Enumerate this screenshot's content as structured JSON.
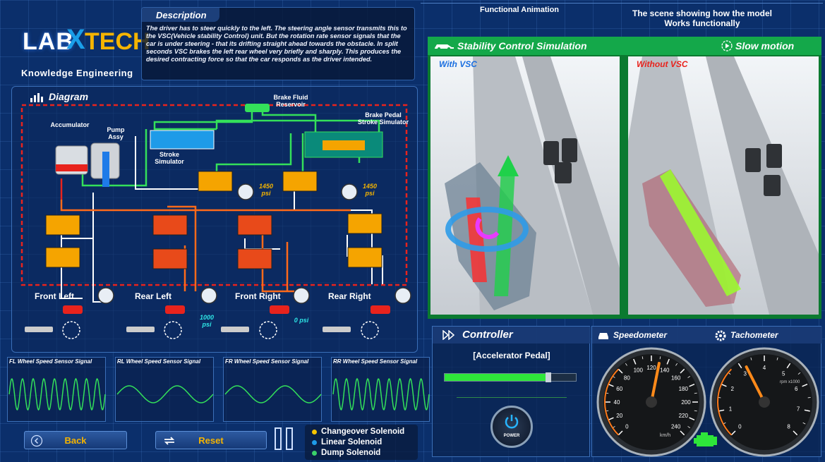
{
  "logo": {
    "lab": "LAB",
    "tech": "TECH",
    "subtitle": "Knowledge Engineering"
  },
  "description": {
    "title": "Description",
    "text": "The driver has to steer quickly to the left. The steering angle sensor transmits this to the VSC(Vehicle stability Control) unit. But the rotation rate sensor signals that the car is under steering - that its drifting straight ahead towards the obstacle. In split seconds VSC brakes the left rear wheel very briefly and sharply. This produces the desired contracting force so that the car responds as the driver intended."
  },
  "diagram": {
    "title": "Diagram",
    "labels": {
      "brake_fluid_reservoir": "Brake Fluid Reservoir",
      "brake_pedal_stroke_simulator": "Brake Pedal Stroke Simulator",
      "accumulator": "Accumulator",
      "pump_assy": "Pump Assy",
      "stroke_simulator": "Stroke Simulator"
    },
    "pressures": {
      "left_top": "1450 psi",
      "right_top": "1450 psi",
      "rear_left": "1000 psi",
      "front_right": "0 psi"
    },
    "wheels": {
      "front_left": "Front Left",
      "rear_left": "Rear Left",
      "front_right": "Front Right",
      "rear_right": "Rear Right"
    }
  },
  "signals": [
    {
      "title": "FL Wheel Speed Sensor Signal",
      "cycles": 9
    },
    {
      "title": "RL Wheel Speed Sensor Signal",
      "cycles": 2
    },
    {
      "title": "FR Wheel Speed Sensor Signal",
      "cycles": 2
    },
    {
      "title": "RR Wheel Speed Sensor Signal",
      "cycles": 9
    }
  ],
  "buttons": {
    "back": "Back",
    "reset": "Reset"
  },
  "legend": [
    {
      "label": "Changeover Solenoid",
      "color": "#f5c400"
    },
    {
      "label": "Linear Solenoid",
      "color": "#1e9be8"
    },
    {
      "label": "Dump Solenoid",
      "color": "#3ad16a"
    }
  ],
  "header": {
    "functional": "Functional Animation",
    "scene_line1": "The scene showing how the model",
    "scene_line2": "Works functionally"
  },
  "simulation": {
    "title": "Stability Control Simulation",
    "slow_motion": "Slow motion",
    "with_vsc": "With VSC",
    "without_vsc": "Without VSC"
  },
  "controller": {
    "title": "Controller",
    "accelerator": "[Accelerator Pedal]",
    "accelerator_level": 0.78,
    "power": "POWER"
  },
  "gauges": {
    "speedometer": "Speedometer",
    "tachometer": "Tachometer",
    "speed_value": 130,
    "speed_max": 240,
    "speed_unit": "km/h",
    "rpm_value": 3.2,
    "rpm_max": 8,
    "rpm_unit": "rpm x1000"
  }
}
